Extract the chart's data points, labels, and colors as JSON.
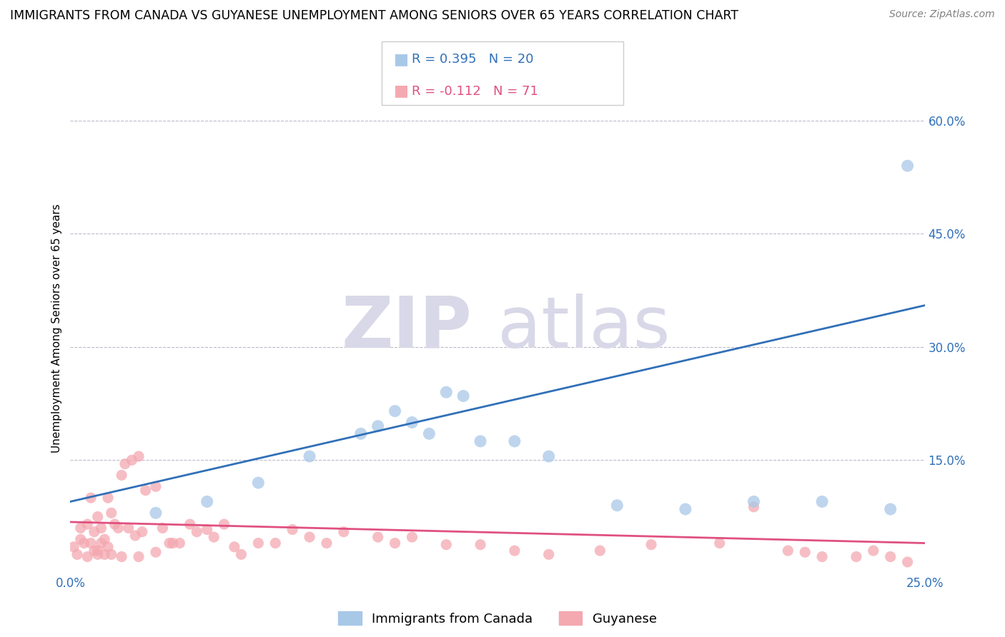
{
  "title": "IMMIGRANTS FROM CANADA VS GUYANESE UNEMPLOYMENT AMONG SENIORS OVER 65 YEARS CORRELATION CHART",
  "source": "Source: ZipAtlas.com",
  "ylabel": "Unemployment Among Seniors over 65 years",
  "xlim": [
    0.0,
    0.25
  ],
  "ylim": [
    0.0,
    0.65
  ],
  "xticks": [
    0.0,
    0.25
  ],
  "xtick_labels": [
    "0.0%",
    "25.0%"
  ],
  "yticks_right": [
    0.0,
    0.15,
    0.3,
    0.45,
    0.6
  ],
  "ytick_labels_right": [
    "",
    "15.0%",
    "30.0%",
    "45.0%",
    "60.0%"
  ],
  "blue_color": "#a8c8e8",
  "pink_color": "#f4a8b0",
  "blue_line_color": "#3070b8",
  "pink_line_color": "#e05080",
  "legend_blue_R": "R = 0.395",
  "legend_blue_N": "N = 20",
  "legend_pink_R": "R = -0.112",
  "legend_pink_N": "N = 71",
  "legend_label_blue": "Immigrants from Canada",
  "legend_label_pink": "Guyanese",
  "watermark_zip": "ZIP",
  "watermark_atlas": "atlas",
  "blue_scatter_x": [
    0.025,
    0.04,
    0.055,
    0.07,
    0.085,
    0.09,
    0.095,
    0.1,
    0.105,
    0.11,
    0.115,
    0.12,
    0.13,
    0.14,
    0.16,
    0.18,
    0.2,
    0.22,
    0.24,
    0.245
  ],
  "blue_scatter_y": [
    0.08,
    0.095,
    0.12,
    0.155,
    0.185,
    0.195,
    0.215,
    0.2,
    0.185,
    0.24,
    0.235,
    0.175,
    0.175,
    0.155,
    0.09,
    0.085,
    0.095,
    0.095,
    0.085,
    0.54
  ],
  "pink_scatter_x": [
    0.001,
    0.002,
    0.003,
    0.003,
    0.004,
    0.005,
    0.006,
    0.006,
    0.007,
    0.007,
    0.008,
    0.008,
    0.009,
    0.009,
    0.01,
    0.01,
    0.011,
    0.011,
    0.012,
    0.013,
    0.014,
    0.015,
    0.016,
    0.017,
    0.018,
    0.019,
    0.02,
    0.021,
    0.022,
    0.025,
    0.027,
    0.029,
    0.03,
    0.032,
    0.035,
    0.037,
    0.04,
    0.042,
    0.045,
    0.048,
    0.05,
    0.055,
    0.06,
    0.065,
    0.07,
    0.075,
    0.08,
    0.09,
    0.095,
    0.1,
    0.11,
    0.12,
    0.13,
    0.14,
    0.155,
    0.17,
    0.19,
    0.2,
    0.21,
    0.215,
    0.22,
    0.23,
    0.235,
    0.24,
    0.245,
    0.005,
    0.008,
    0.012,
    0.015,
    0.02,
    0.025
  ],
  "pink_scatter_y": [
    0.035,
    0.025,
    0.045,
    0.06,
    0.04,
    0.065,
    0.1,
    0.04,
    0.055,
    0.03,
    0.075,
    0.03,
    0.04,
    0.06,
    0.045,
    0.025,
    0.1,
    0.035,
    0.08,
    0.065,
    0.06,
    0.13,
    0.145,
    0.06,
    0.15,
    0.05,
    0.155,
    0.055,
    0.11,
    0.115,
    0.06,
    0.04,
    0.04,
    0.04,
    0.065,
    0.055,
    0.058,
    0.048,
    0.065,
    0.035,
    0.025,
    0.04,
    0.04,
    0.058,
    0.048,
    0.04,
    0.055,
    0.048,
    0.04,
    0.048,
    0.038,
    0.038,
    0.03,
    0.025,
    0.03,
    0.038,
    0.04,
    0.088,
    0.03,
    0.028,
    0.022,
    0.022,
    0.03,
    0.022,
    0.015,
    0.022,
    0.025,
    0.025,
    0.022,
    0.022,
    0.028
  ],
  "blue_line_x": [
    0.0,
    0.25
  ],
  "blue_line_y": [
    0.095,
    0.355
  ],
  "pink_line_x": [
    0.0,
    0.25
  ],
  "pink_line_y": [
    0.068,
    0.04
  ],
  "grid_color": "#bbbbcc",
  "bg_color": "#ffffff",
  "title_fontsize": 12.5,
  "label_fontsize": 11,
  "tick_fontsize": 12
}
